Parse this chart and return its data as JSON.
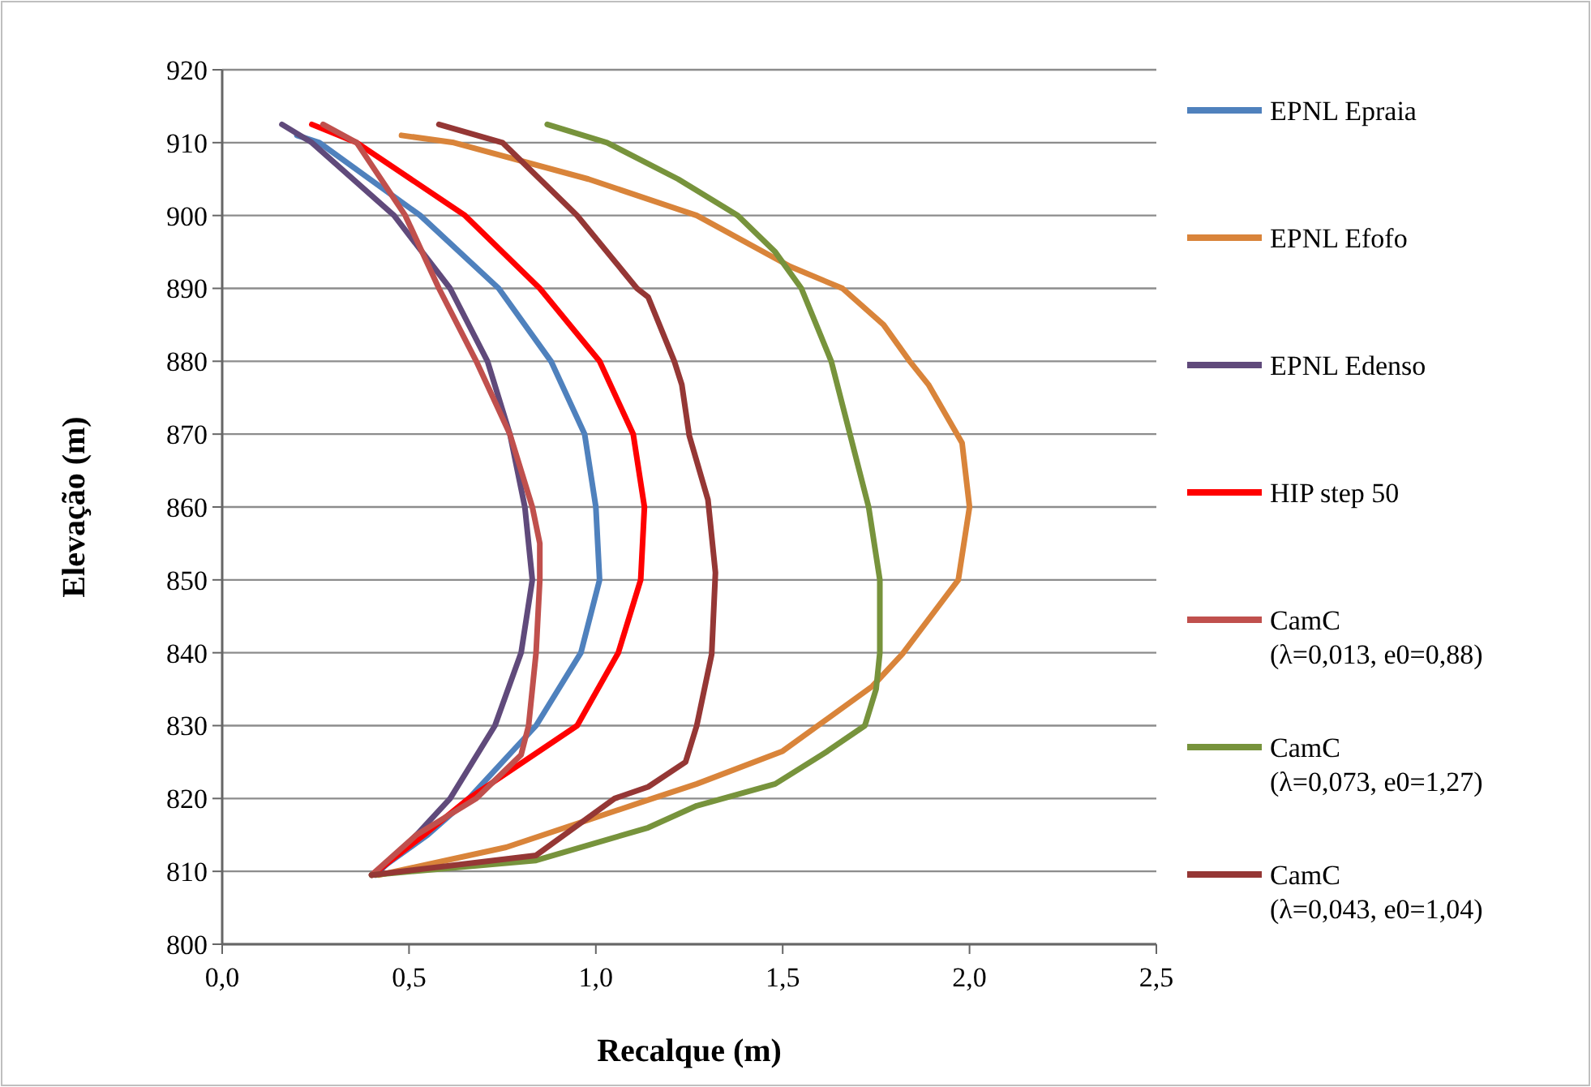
{
  "chart_data": {
    "type": "line",
    "xlabel": "Recalque (m)",
    "ylabel": "Elevação (m)",
    "xlim": [
      0,
      2.5
    ],
    "xticks": [
      {
        "value": 0,
        "label": "0,0"
      },
      {
        "value": 0.5,
        "label": "0,5"
      },
      {
        "value": 1,
        "label": "1,0"
      },
      {
        "value": 1.5,
        "label": "1,5"
      },
      {
        "value": 2,
        "label": "2,0"
      },
      {
        "value": 2.5,
        "label": "2,5"
      }
    ],
    "ylim": [
      800,
      920
    ],
    "yticks": [
      800,
      810,
      820,
      830,
      840,
      850,
      860,
      870,
      880,
      890,
      900,
      910,
      920
    ],
    "grid": "y",
    "legend": "right",
    "line_style": "solid",
    "marker": "none",
    "series": [
      {
        "name": "EPNL Epraia",
        "color": "#4f81bd",
        "x": [
          0.2,
          0.26,
          0.53,
          0.74,
          0.88,
          0.97,
          1.0,
          1.01,
          0.96,
          0.84,
          0.66,
          0.55,
          0.4
        ],
        "values": [
          911,
          910,
          900,
          890,
          880,
          870,
          860,
          850,
          840,
          830,
          820,
          815,
          809.5
        ]
      },
      {
        "name": "EPNL Efofo",
        "color": "#d9843a",
        "x": [
          0.48,
          0.62,
          0.98,
          1.27,
          1.52,
          1.66,
          1.77,
          1.84,
          1.89,
          1.98,
          2.0,
          1.97,
          1.82,
          1.74,
          1.5,
          1.27,
          1.14,
          0.76,
          0.42
        ],
        "values": [
          911,
          910,
          905,
          900,
          893,
          890,
          885,
          880,
          876.8,
          868.8,
          860,
          850,
          839.8,
          835.4,
          826.5,
          822,
          819.8,
          813.3,
          809.5
        ]
      },
      {
        "name": "EPNL Edenso",
        "color": "#604a7b",
        "x": [
          0.16,
          0.24,
          0.46,
          0.61,
          0.71,
          0.77,
          0.81,
          0.83,
          0.8,
          0.73,
          0.61,
          0.52,
          0.41
        ],
        "values": [
          912.5,
          910,
          900,
          890,
          880,
          870,
          860,
          850,
          840,
          830,
          820,
          815,
          809.5
        ]
      },
      {
        "name": "HIP step 50",
        "color": "#ff0000",
        "x": [
          0.24,
          0.36,
          0.65,
          0.85,
          1.01,
          1.1,
          1.13,
          1.12,
          1.06,
          0.95,
          0.66,
          0.54,
          0.4
        ],
        "values": [
          912.5,
          910,
          900,
          890,
          880,
          870,
          860,
          850,
          840,
          830,
          820,
          815,
          809.5
        ]
      },
      {
        "name": "CamC\n(λ=0,013, e0=0,88)",
        "color": "#c0504d",
        "x": [
          0.27,
          0.36,
          0.49,
          0.58,
          0.68,
          0.77,
          0.83,
          0.85,
          0.85,
          0.84,
          0.82,
          0.8,
          0.68,
          0.52,
          0.4
        ],
        "values": [
          912.5,
          910,
          900,
          890,
          880,
          870,
          860,
          855,
          850,
          840,
          830,
          826,
          820,
          815,
          809.5
        ]
      },
      {
        "name": "CamC\n(λ=0,073, e0=1,27)",
        "color": "#77933c",
        "x": [
          0.87,
          1.03,
          1.22,
          1.38,
          1.48,
          1.55,
          1.63,
          1.68,
          1.73,
          1.76,
          1.76,
          1.75,
          1.72,
          1.62,
          1.48,
          1.27,
          1.14,
          0.84,
          0.4
        ],
        "values": [
          912.5,
          910,
          905,
          900,
          895,
          890,
          880,
          870,
          860,
          850,
          840,
          835,
          830,
          826.5,
          822,
          819,
          816,
          811.5,
          809.5
        ]
      },
      {
        "name": "CamC\n(λ=0,043, e0=1,04)",
        "color": "#953735",
        "x": [
          0.58,
          0.75,
          0.95,
          1.11,
          1.14,
          1.21,
          1.23,
          1.25,
          1.3,
          1.32,
          1.31,
          1.27,
          1.24,
          1.14,
          1.05,
          0.84,
          0.4
        ],
        "values": [
          912.5,
          910,
          900,
          890,
          888.8,
          880,
          876.8,
          869.8,
          861,
          851,
          839.8,
          830,
          825,
          821.6,
          820,
          812.2,
          809.5
        ]
      }
    ]
  }
}
